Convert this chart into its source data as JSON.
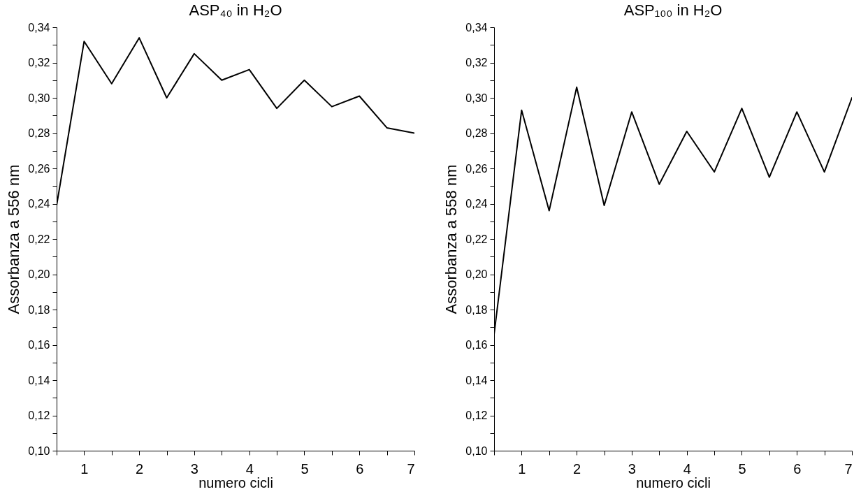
{
  "chart_data": [
    {
      "type": "line",
      "title": "ASP₄₀ in H₂O",
      "xlabel": "numero cicli",
      "ylabel": "Assorbanza a 556 nm",
      "x": [
        0.5,
        1,
        1.5,
        2,
        2.5,
        3,
        3.5,
        4,
        4.5,
        5,
        5.5,
        6,
        6.5,
        7
      ],
      "series": [
        {
          "color": "#000000",
          "values": [
            0.239,
            0.332,
            0.308,
            0.334,
            0.3,
            0.325,
            0.31,
            0.316,
            0.294,
            0.31,
            0.295,
            0.301,
            0.283,
            0.28
          ]
        }
      ],
      "xlim": [
        0.5,
        7
      ],
      "xticks": [
        {
          "value": 0.5,
          "label": null
        },
        1,
        {
          "value": 1.5,
          "label": null
        },
        2,
        {
          "value": 2.5,
          "label": null
        },
        3,
        {
          "value": 3.5,
          "label": null
        },
        4,
        {
          "value": 4.5,
          "label": null
        },
        5,
        {
          "value": 5.5,
          "label": null
        },
        6,
        {
          "value": 6.5,
          "label": null
        },
        7
      ],
      "ylim": [
        0.1,
        0.34
      ],
      "yticks": [
        {
          "value": 0.1,
          "label": "0,10"
        },
        {
          "value": 0.11,
          "label": null
        },
        {
          "value": 0.12,
          "label": "0,12"
        },
        {
          "value": 0.13,
          "label": null
        },
        {
          "value": 0.14,
          "label": "0,14"
        },
        {
          "value": 0.15,
          "label": null
        },
        {
          "value": 0.16,
          "label": "0,16"
        },
        {
          "value": 0.17,
          "label": null
        },
        {
          "value": 0.18,
          "label": "0,18"
        },
        {
          "value": 0.19,
          "label": null
        },
        {
          "value": 0.2,
          "label": "0,20"
        },
        {
          "value": 0.21,
          "label": null
        },
        {
          "value": 0.22,
          "label": "0,22"
        },
        {
          "value": 0.23,
          "label": null
        },
        {
          "value": 0.24,
          "label": "0,24"
        },
        {
          "value": 0.25,
          "label": null
        },
        {
          "value": 0.26,
          "label": "0,26"
        },
        {
          "value": 0.27,
          "label": null
        },
        {
          "value": 0.28,
          "label": "0,28"
        },
        {
          "value": 0.29,
          "label": null
        },
        {
          "value": 0.3,
          "label": "0,30"
        },
        {
          "value": 0.31,
          "label": null
        },
        {
          "value": 0.32,
          "label": "0,32"
        },
        {
          "value": 0.33,
          "label": null
        },
        {
          "value": 0.34,
          "label": "0,34"
        }
      ]
    },
    {
      "type": "line",
      "title": "ASP₁₀₀ in H₂O",
      "xlabel": "numero cicli",
      "ylabel": "Assorbanza a 558 nm",
      "x": [
        0.5,
        1,
        1.5,
        2,
        2.5,
        3,
        3.5,
        4,
        4.5,
        5,
        5.5,
        6,
        6.5,
        7
      ],
      "series": [
        {
          "color": "#000000",
          "values": [
            0.166,
            0.293,
            0.236,
            0.306,
            0.239,
            0.292,
            0.251,
            0.281,
            0.258,
            0.294,
            0.255,
            0.292,
            0.258,
            0.3
          ]
        }
      ],
      "xlim": [
        0.5,
        7
      ],
      "xticks": [
        {
          "value": 0.5,
          "label": null
        },
        1,
        {
          "value": 1.5,
          "label": null
        },
        2,
        {
          "value": 2.5,
          "label": null
        },
        3,
        {
          "value": 3.5,
          "label": null
        },
        4,
        {
          "value": 4.5,
          "label": null
        },
        5,
        {
          "value": 5.5,
          "label": null
        },
        6,
        {
          "value": 6.5,
          "label": null
        },
        7
      ],
      "ylim": [
        0.1,
        0.34
      ],
      "yticks": [
        {
          "value": 0.1,
          "label": "0,10"
        },
        {
          "value": 0.11,
          "label": null
        },
        {
          "value": 0.12,
          "label": "0,12"
        },
        {
          "value": 0.13,
          "label": null
        },
        {
          "value": 0.14,
          "label": "0,14"
        },
        {
          "value": 0.15,
          "label": null
        },
        {
          "value": 0.16,
          "label": "0,16"
        },
        {
          "value": 0.17,
          "label": null
        },
        {
          "value": 0.18,
          "label": "0,18"
        },
        {
          "value": 0.19,
          "label": null
        },
        {
          "value": 0.2,
          "label": "0,20"
        },
        {
          "value": 0.21,
          "label": null
        },
        {
          "value": 0.22,
          "label": "0,22"
        },
        {
          "value": 0.23,
          "label": null
        },
        {
          "value": 0.24,
          "label": "0,24"
        },
        {
          "value": 0.25,
          "label": null
        },
        {
          "value": 0.26,
          "label": "0,26"
        },
        {
          "value": 0.27,
          "label": null
        },
        {
          "value": 0.28,
          "label": "0,28"
        },
        {
          "value": 0.29,
          "label": null
        },
        {
          "value": 0.3,
          "label": "0,30"
        },
        {
          "value": 0.31,
          "label": null
        },
        {
          "value": 0.32,
          "label": "0,32"
        },
        {
          "value": 0.33,
          "label": null
        },
        {
          "value": 0.34,
          "label": "0,34"
        }
      ]
    }
  ]
}
